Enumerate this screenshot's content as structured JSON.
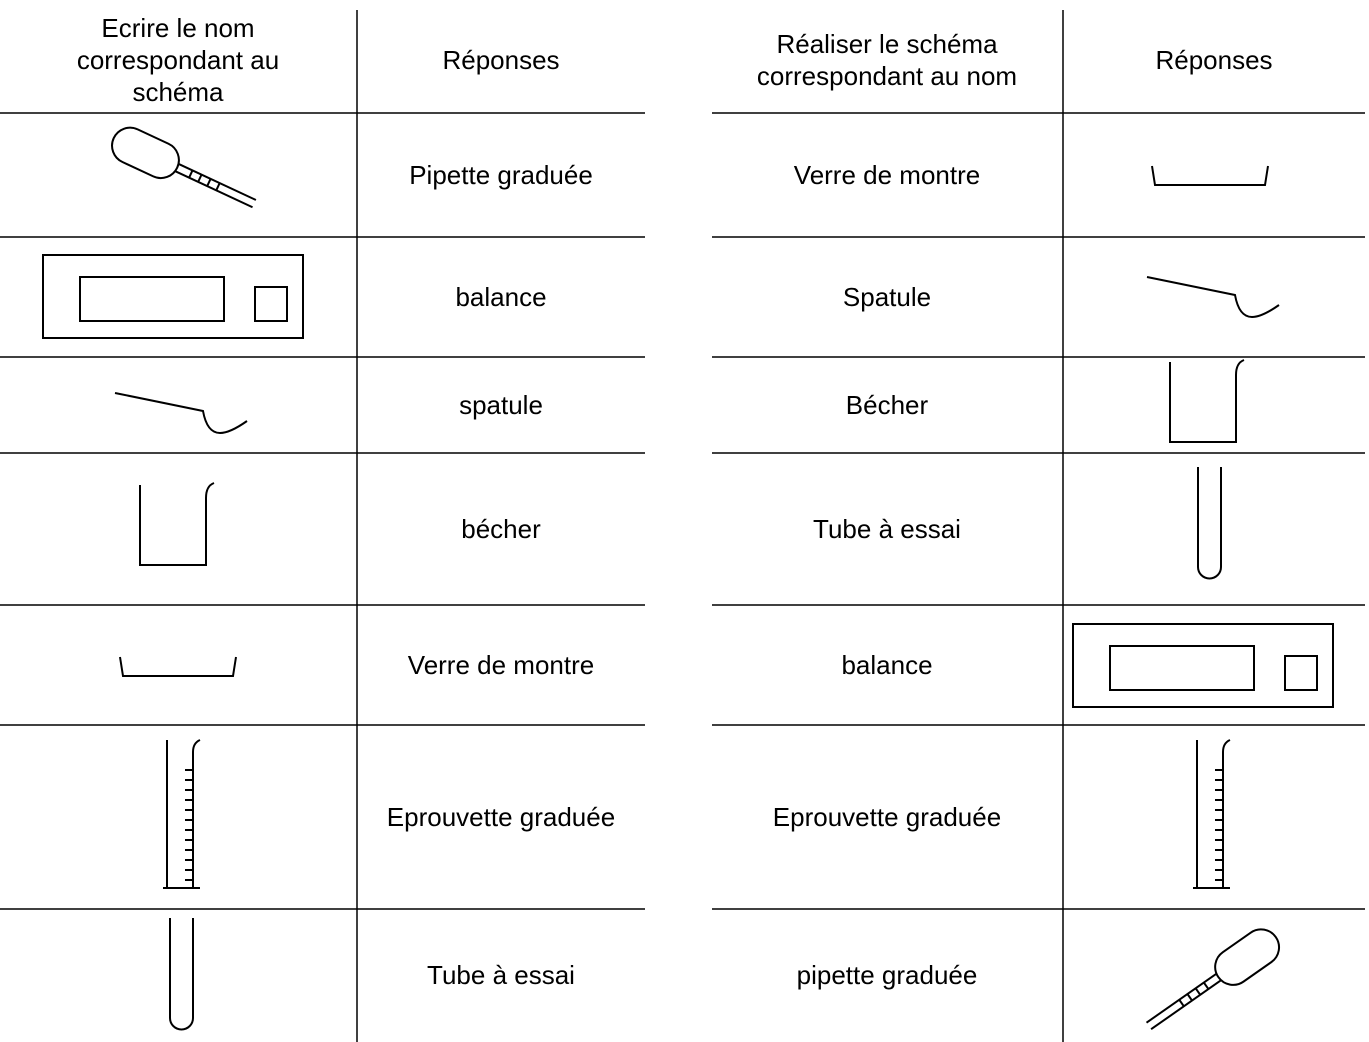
{
  "left_table": {
    "headers": [
      "Ecrire le nom correspondant au schéma",
      "Réponses"
    ],
    "rows": [
      "Pipette graduée",
      "balance",
      "spatule",
      "bécher",
      "Verre de montre",
      "Eprouvette graduée",
      "Tube à essai"
    ]
  },
  "right_table": {
    "headers": [
      "Réaliser le schéma correspondant au nom",
      "Réponses"
    ],
    "rows": [
      "Verre de montre",
      "Spatule",
      "Bécher",
      "Tube à essai",
      "balance",
      "Eprouvette graduée",
      "pipette graduée"
    ]
  }
}
